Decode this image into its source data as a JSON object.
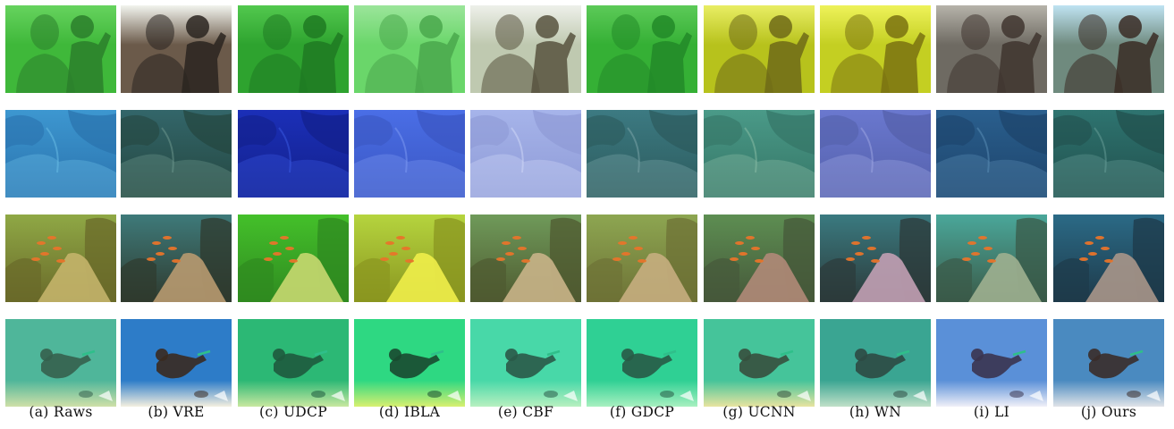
{
  "figure": {
    "columns": [
      {
        "caption": "(a) Raws"
      },
      {
        "caption": "(b) VRE"
      },
      {
        "caption": "(c) UDCP"
      },
      {
        "caption": "(d) IBLA"
      },
      {
        "caption": "(e) CBF"
      },
      {
        "caption": "(f) GDCP"
      },
      {
        "caption": "(g) UCNN"
      },
      {
        "caption": "(h) WN"
      },
      {
        "caption": "(i) LI"
      },
      {
        "caption": "(j) Ours"
      }
    ],
    "rows": [
      {
        "scene": "statue-and-diver",
        "tints": [
          "#3fb83a",
          "#6b5a4a",
          "#2ea32f",
          "#6ad66a",
          "#bfc9b0",
          "#35b035",
          "#b7c21c",
          "#c4cf22",
          "#6e6a62",
          "#6f8a7e"
        ],
        "fg": [
          "#2c7f2c",
          "#2a2520",
          "#1f7a22",
          "#4aa84c",
          "#57523e",
          "#228a28",
          "#6e6a18",
          "#7a7210",
          "#40352f",
          "#3a2c24"
        ],
        "light": [
          "#66d35e",
          "#f2f4ee",
          "#52c84e",
          "#9be59a",
          "#eef0ea",
          "#5cca58",
          "#e9ee64",
          "#eef25a",
          "#b6b3aa",
          "#bfe3f2"
        ]
      },
      {
        "scene": "coral-reef",
        "tints": [
          "#3d97d0",
          "#33666a",
          "#1b2fb8",
          "#4a6ee6",
          "#a6b4ea",
          "#3c7a82",
          "#4a9a88",
          "#6a78cf",
          "#2a5f8e",
          "#2e7470"
        ],
        "fg": [
          "#2a72ad",
          "#24463f",
          "#13208a",
          "#3a56c2",
          "#8e9ad6",
          "#2c5a5c",
          "#357566",
          "#5460aa",
          "#1d436a",
          "#214f4c"
        ],
        "light": [
          "#6cc0e8",
          "#6f9a90",
          "#3a5ae4",
          "#7f9cf4",
          "#d2daf8",
          "#7fa8ac",
          "#8ec0a8",
          "#a0a8e4",
          "#5c90b8",
          "#6aa09a"
        ]
      },
      {
        "scene": "fish-slope",
        "tints": [
          "#8fa845",
          "#3e7a7a",
          "#44c02a",
          "#b5d43e",
          "#6f9a5a",
          "#8da651",
          "#5d8e52",
          "#3a7a80",
          "#4aa79a",
          "#2b6a86"
        ],
        "fg": [
          "#6a6a2a",
          "#2f3a2e",
          "#2f8a20",
          "#8a9620",
          "#4f5a30",
          "#6e7236",
          "#46583a",
          "#2c3a3a",
          "#3a5a48",
          "#1e3a4a"
        ],
        "light": [
          "#c4b46a",
          "#b89a70",
          "#c8d870",
          "#f0ee4a",
          "#c9b488",
          "#c6ae80",
          "#b08a78",
          "#c2a0b4",
          "#9fb090",
          "#a8968a"
        ]
      },
      {
        "scene": "diver-sand",
        "tints": [
          "#4fb69a",
          "#2d7cc8",
          "#2cb875",
          "#2ed882",
          "#48d8a8",
          "#2fd094",
          "#45c49a",
          "#3aa592",
          "#5a90d8",
          "#4a8ac0"
        ],
        "fg": [
          "#35604e",
          "#3a2a20",
          "#1e5a3e",
          "#1a4a30",
          "#2a5a48",
          "#285a46",
          "#36503e",
          "#2e4a44",
          "#3a3450",
          "#3a2c2a"
        ],
        "light": [
          "#cfe0a8",
          "#f4f0e0",
          "#c8e8a0",
          "#d8f070",
          "#b8f0c0",
          "#a8f0c0",
          "#e8e4a0",
          "#c0e0c8",
          "#f0f0f8",
          "#e0e4e8"
        ]
      }
    ]
  }
}
